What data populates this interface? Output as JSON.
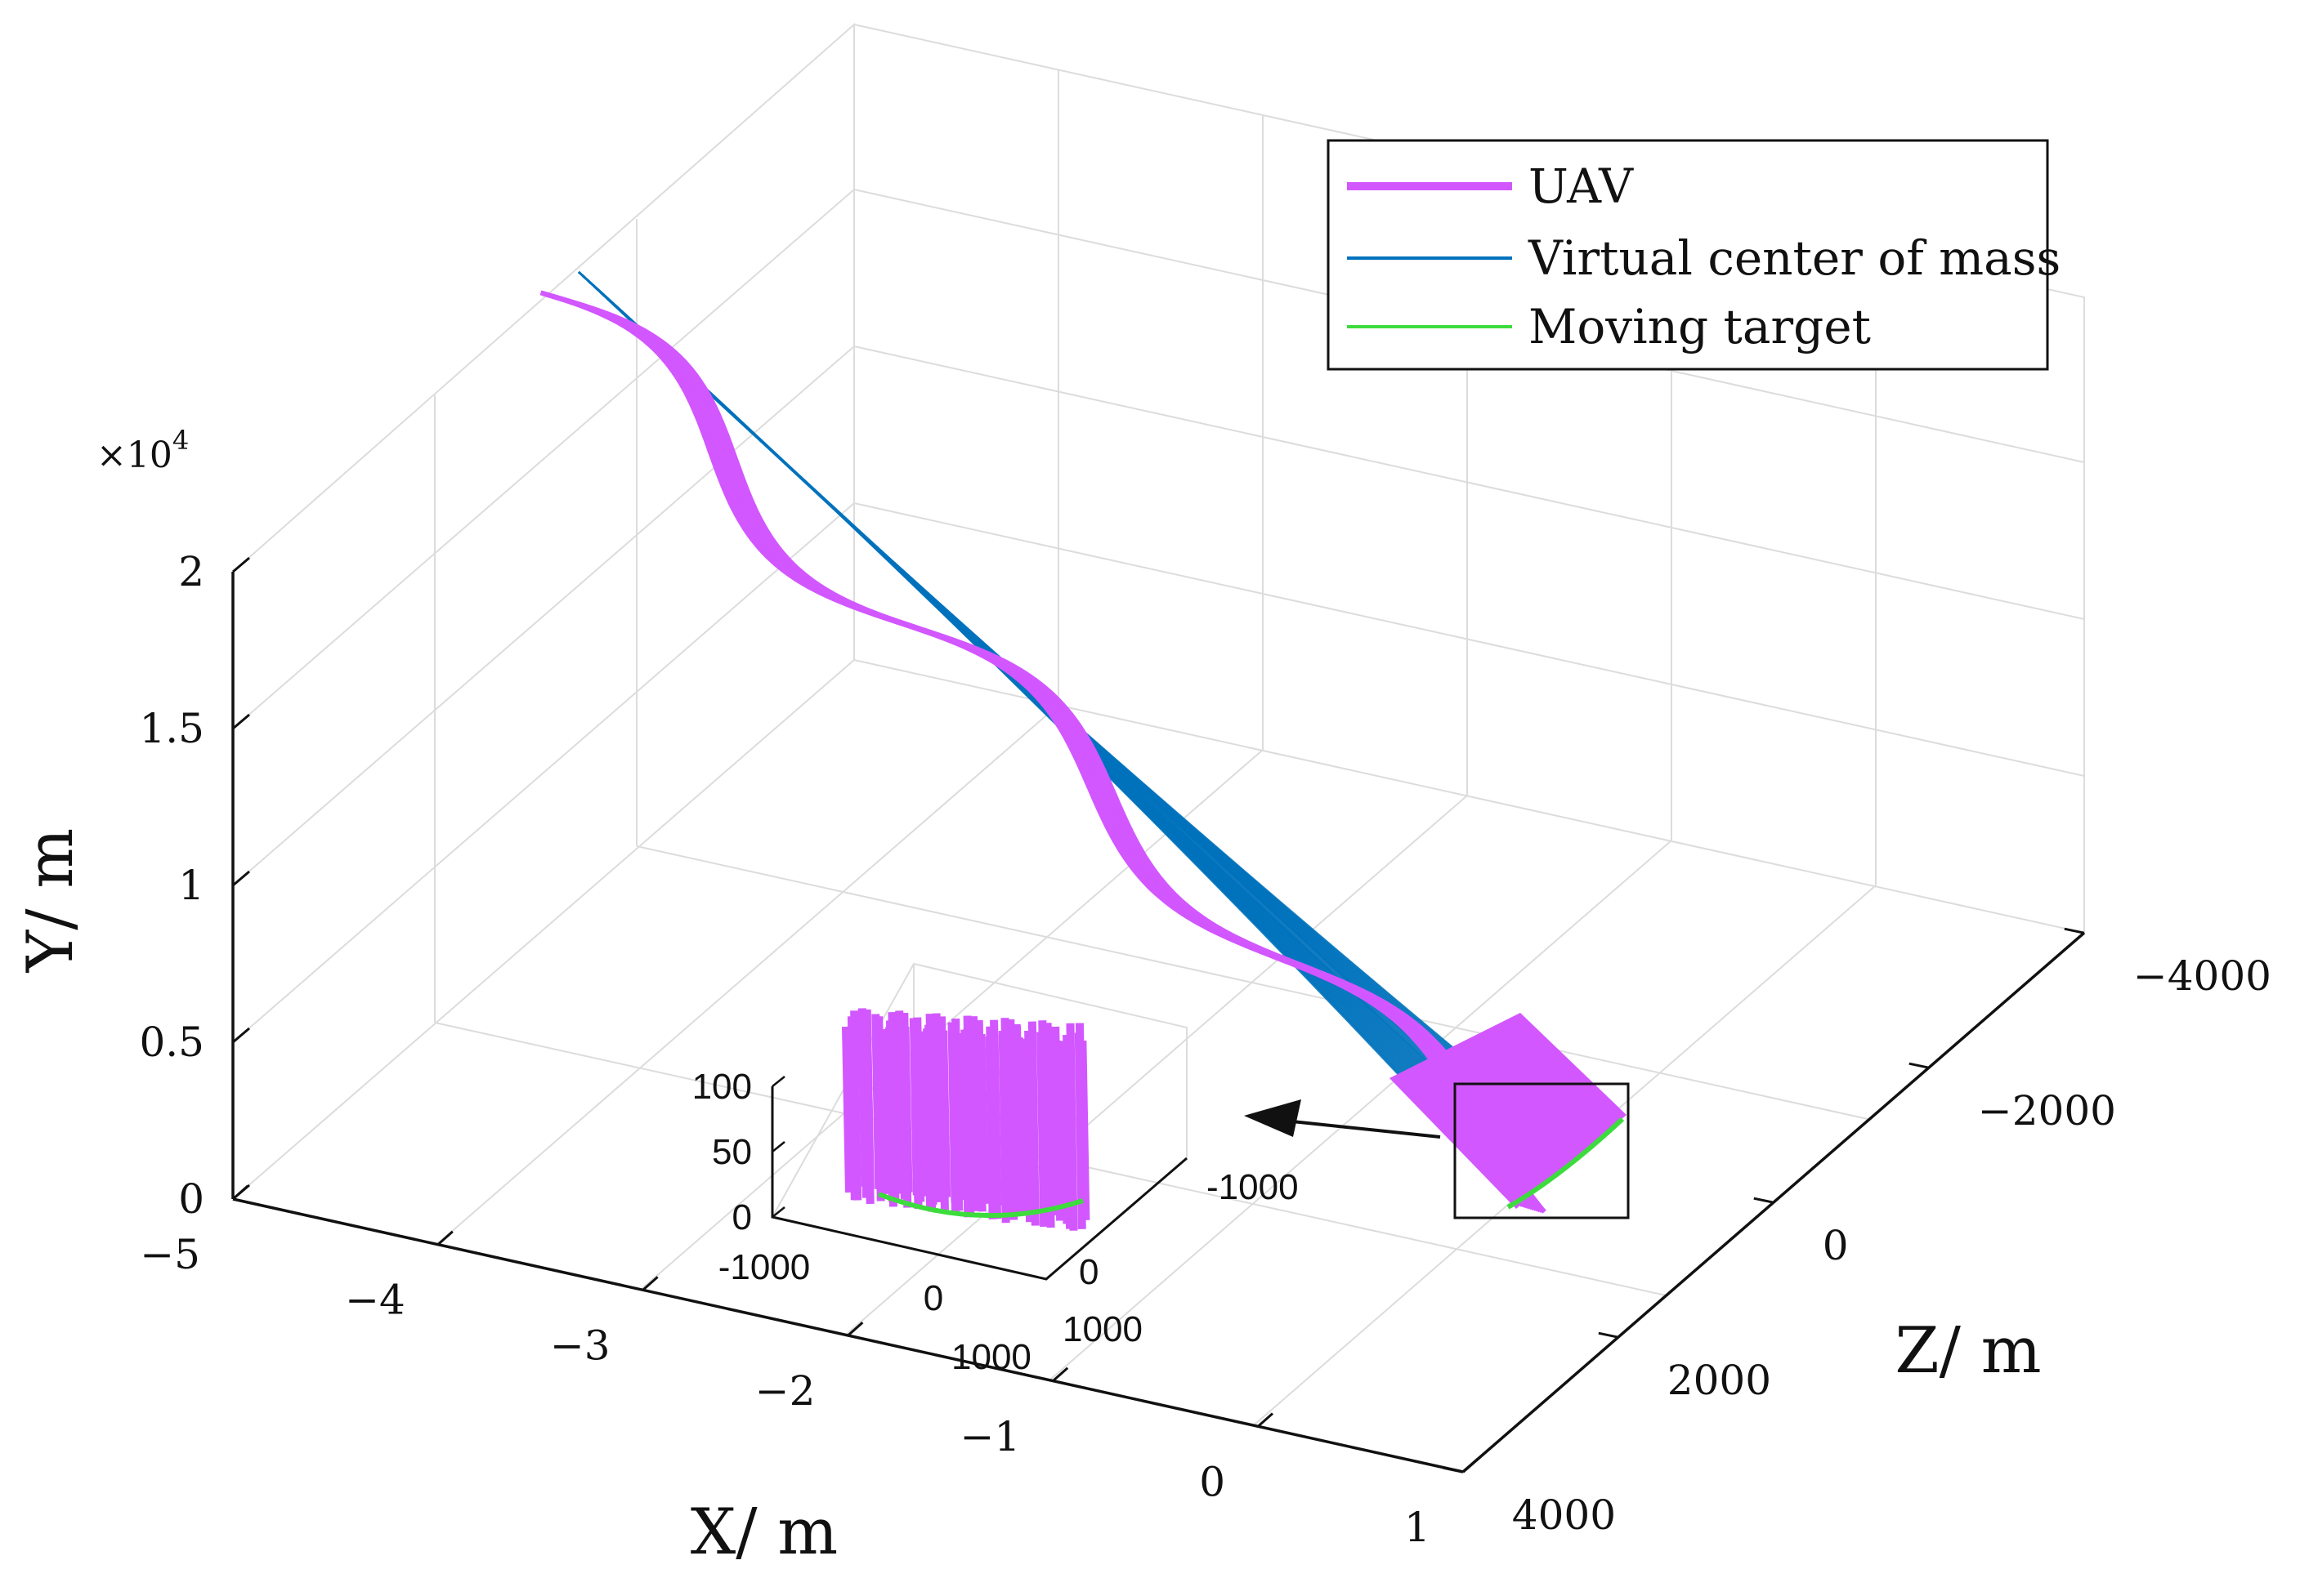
{
  "chart_data": [
    {
      "type": "line",
      "dimension": "3d",
      "title": "",
      "xlabel": "X/ m",
      "ylabel": "Y/ m",
      "zlabel": "Z/ m",
      "y_exponent_base": "×10",
      "y_exponent_power": "4",
      "x_ticks": [
        "−5",
        "−4",
        "−3",
        "−2",
        "−1",
        "0",
        "1"
      ],
      "y_ticks": [
        "0",
        "0.5",
        "1",
        "1.5",
        "2"
      ],
      "z_ticks": [
        "−4000",
        "−2000",
        "0",
        "2000",
        "4000"
      ],
      "xlim": [
        -5,
        1
      ],
      "ylim": [
        0,
        20000
      ],
      "zlim": [
        -4000,
        4000
      ],
      "grid": true,
      "legend_position": "top-right",
      "series": [
        {
          "name": "UAV",
          "color": "#d257ff",
          "description_points": {
            "x": [
              -4.8,
              -4.2,
              -3.6,
              -3.0,
              -2.4,
              -1.8,
              -1.2,
              -0.6,
              0.0
            ],
            "y": [
              18000,
              16500,
              14500,
              12500,
              10500,
              8500,
              6500,
              4000,
              1000
            ],
            "z": [
              -3000,
              -1500,
              500,
              -1000,
              700,
              -900,
              600,
              -500,
              0
            ]
          }
        },
        {
          "name": "Virtual center of mass",
          "color": "#0072bd",
          "description_points": {
            "x": [
              -4.9,
              -4.0,
              -3.0,
              -2.0,
              -1.0,
              0.0
            ],
            "y": [
              19500,
              16000,
              12500,
              9000,
              5500,
              2000
            ],
            "z": [
              -3200,
              -2500,
              -1800,
              -1200,
              -600,
              0
            ]
          }
        },
        {
          "name": "Moving target",
          "color": "#3ddc3d",
          "description_points": {
            "x": [
              -0.1,
              0.0,
              0.1
            ],
            "y": [
              0,
              0,
              0
            ],
            "z": [
              -800,
              0,
              800
            ]
          }
        }
      ]
    },
    {
      "type": "line",
      "dimension": "3d",
      "role": "inset zoom of the final segment",
      "title": "",
      "x_ticks": [
        "-1000",
        "0",
        "1000"
      ],
      "y_ticks": [
        "0",
        "50",
        "100"
      ],
      "z_ticks": [
        "-1000",
        "0",
        "1000"
      ],
      "xlim": [
        -1000,
        1000
      ],
      "ylim": [
        0,
        100
      ],
      "zlim": [
        -1000,
        1000
      ],
      "grid": false,
      "series": [
        {
          "name": "UAV",
          "color": "#d257ff"
        },
        {
          "name": "Moving target",
          "color": "#3ddc3d"
        }
      ]
    }
  ]
}
